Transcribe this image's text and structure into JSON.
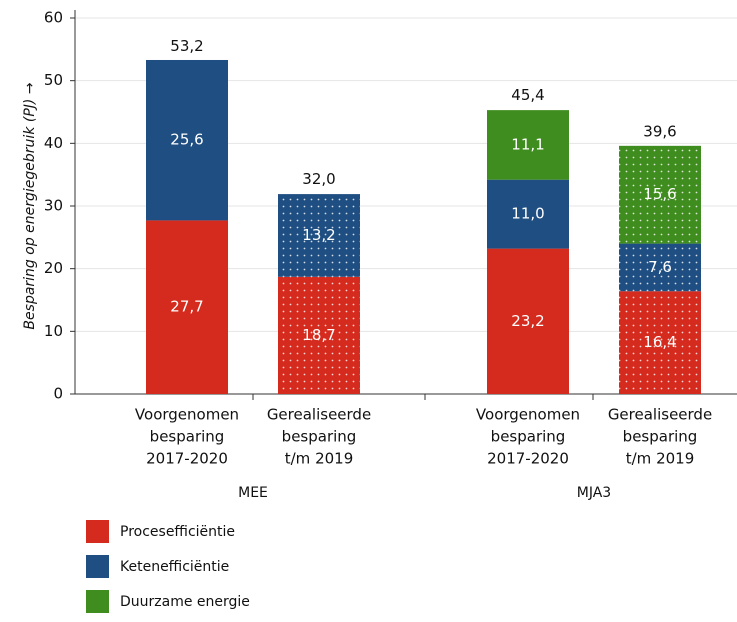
{
  "chart_data": {
    "type": "stacked-bar",
    "y_label": "Besparing op energiegebruik (PJ) →",
    "categories": [
      [
        "Voorgenomen",
        "besparing",
        "2017-2020"
      ],
      [
        "Gerealiseerde",
        "besparing",
        "t/m 2019"
      ],
      [
        "Voorgenomen",
        "besparing",
        "2017-2020"
      ],
      [
        "Gerealiseerde",
        "besparing",
        "t/m 2019"
      ]
    ],
    "groups": [
      "MEE",
      "MJA3"
    ],
    "dotted": [
      false,
      true,
      false,
      true
    ],
    "series": [
      {
        "name": "Procesefficiëntie",
        "color": "#d52b1e",
        "values": [
          27.7,
          18.7,
          23.2,
          16.4
        ],
        "value_labels": [
          "27,7",
          "18,7",
          "23,2",
          "16,4"
        ]
      },
      {
        "name": "Ketenefficiëntie",
        "color": "#1f4e82",
        "values": [
          25.6,
          13.2,
          11.0,
          7.6
        ],
        "value_labels": [
          "25,6",
          "13,2",
          "11,0",
          "7,6"
        ]
      },
      {
        "name": "Duurzame energie",
        "color": "#3f8c1f",
        "values": [
          null,
          null,
          11.1,
          15.6
        ],
        "value_labels": [
          null,
          null,
          "11,1",
          "15,6"
        ]
      }
    ],
    "totals": [
      53.2,
      32.0,
      45.4,
      39.6
    ],
    "total_labels": [
      "53,2",
      "32,0",
      "45,4",
      "39,6"
    ],
    "ylim": [
      0,
      60
    ],
    "yticks": [
      0,
      10,
      20,
      30,
      40,
      50,
      60
    ],
    "grid": true
  }
}
